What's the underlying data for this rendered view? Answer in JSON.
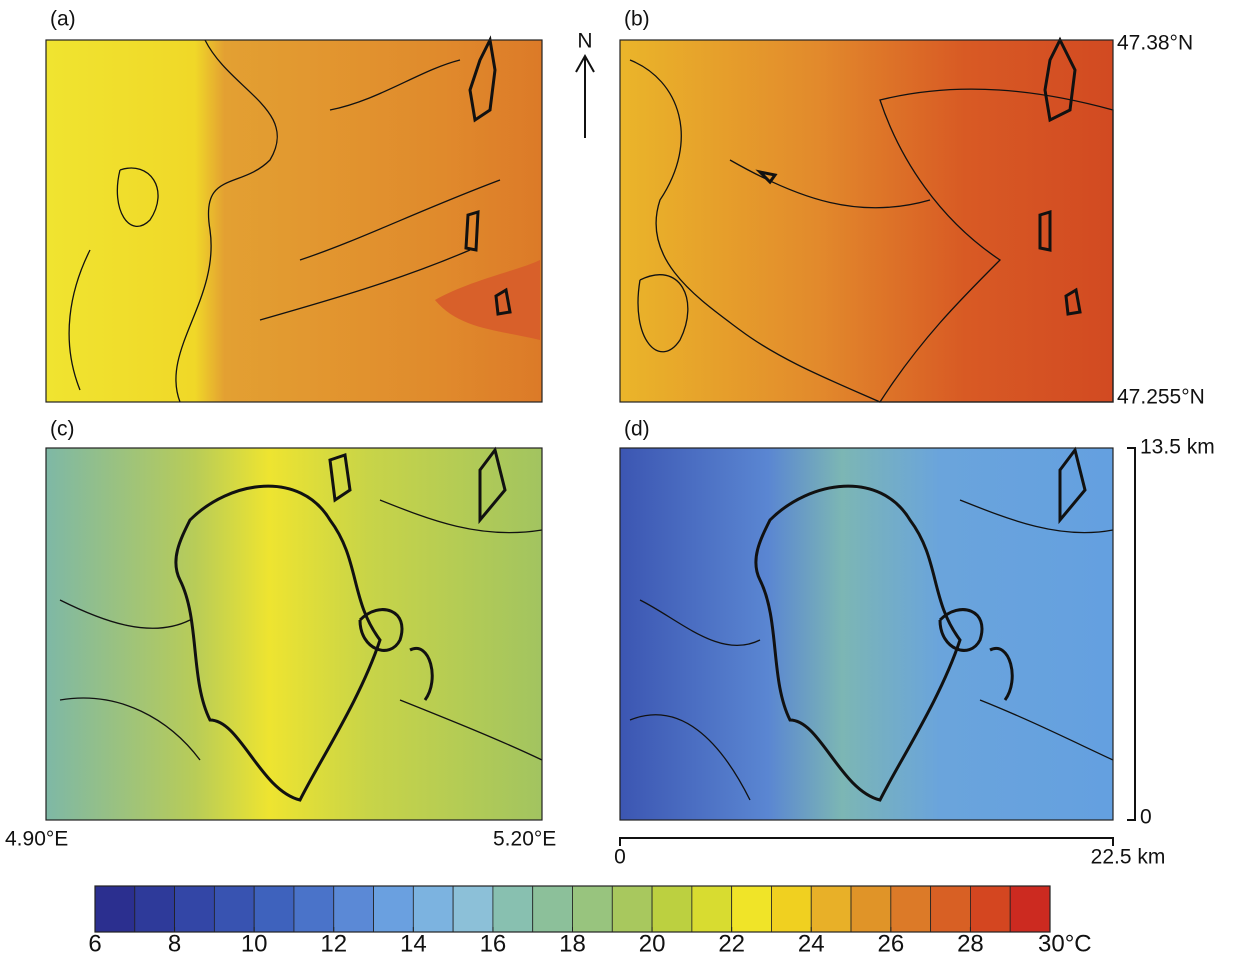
{
  "panels": [
    {
      "label": "(a)"
    },
    {
      "label": "(b)"
    },
    {
      "label": "(c)"
    },
    {
      "label": "(d)"
    }
  ],
  "north": "N",
  "latitude": {
    "top": "47.38°N",
    "bottom": "47.255°N"
  },
  "longitude": {
    "left": "4.90°E",
    "right": "5.20°E"
  },
  "scale": {
    "vertical": {
      "top": "13.5 km",
      "bottom": "0"
    },
    "horizontal": {
      "left": "0",
      "right": "22.5 km"
    }
  },
  "colorbar": {
    "min": 6,
    "max": 30,
    "colors": [
      "#2b2f8f",
      "#2e3a9a",
      "#3346a6",
      "#3853b1",
      "#3e62bd",
      "#4a73c9",
      "#5b89d6",
      "#6aa0e0",
      "#7cb3e0",
      "#8cc0d8",
      "#88c0b0",
      "#8cc09a",
      "#98c47e",
      "#a8c85e",
      "#bcd040",
      "#d8dc30",
      "#f0e428",
      "#f0d020",
      "#e8b028",
      "#e09428",
      "#dc7a28",
      "#d86024",
      "#d44620",
      "#cc2a20"
    ],
    "ticks": [
      6,
      8,
      10,
      12,
      14,
      16,
      18,
      20,
      22,
      24,
      26,
      28,
      {
        "value": 30,
        "label": "30°C"
      }
    ]
  }
}
